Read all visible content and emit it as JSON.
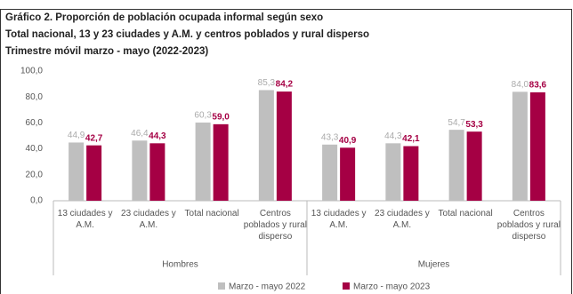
{
  "chart_data": {
    "type": "bar",
    "title": "Gráfico 2. Proporción de población ocupada informal según sexo",
    "subtitles": [
      "Total nacional, 13 y 23 ciudades y A.M. y centros poblados y rural disperso",
      "Trimestre móvil marzo - mayo (2022-2023)"
    ],
    "categories": [
      "13 ciudades y A.M.",
      "23 ciudades y A.M.",
      "Total nacional",
      "Centros poblados y rural disperso",
      "13 ciudades y A.M.",
      "23 ciudades y A.M.",
      "Total nacional",
      "Centros poblados y rural disperso"
    ],
    "groups": [
      "Hombres",
      "Mujeres"
    ],
    "series": [
      {
        "name": "Marzo - mayo 2022",
        "color": "#bfbfbf",
        "values": [
          44.9,
          46.4,
          60.3,
          85.3,
          43.3,
          44.3,
          54.7,
          84.0
        ],
        "value_labels": [
          "44,9",
          "46,4",
          "60,3",
          "85,3",
          "43,3",
          "44,3",
          "54,7",
          "84,0"
        ]
      },
      {
        "name": "Marzo - mayo 2023",
        "color": "#a50044",
        "values": [
          42.7,
          44.3,
          59.0,
          84.2,
          40.9,
          42.1,
          53.3,
          83.6
        ],
        "value_labels": [
          "42,7",
          "44,3",
          "59,0",
          "84,2",
          "40,9",
          "42,1",
          "53,3",
          "83,6"
        ]
      }
    ],
    "ylim": [
      0,
      100
    ],
    "yticks": [
      {
        "value": 0,
        "label": "0,0"
      },
      {
        "value": 20,
        "label": "20,0"
      },
      {
        "value": 40,
        "label": "40,0"
      },
      {
        "value": 60,
        "label": "60,0"
      },
      {
        "value": 80,
        "label": "80,0"
      },
      {
        "value": 100,
        "label": "100,0"
      }
    ],
    "grid": false
  }
}
